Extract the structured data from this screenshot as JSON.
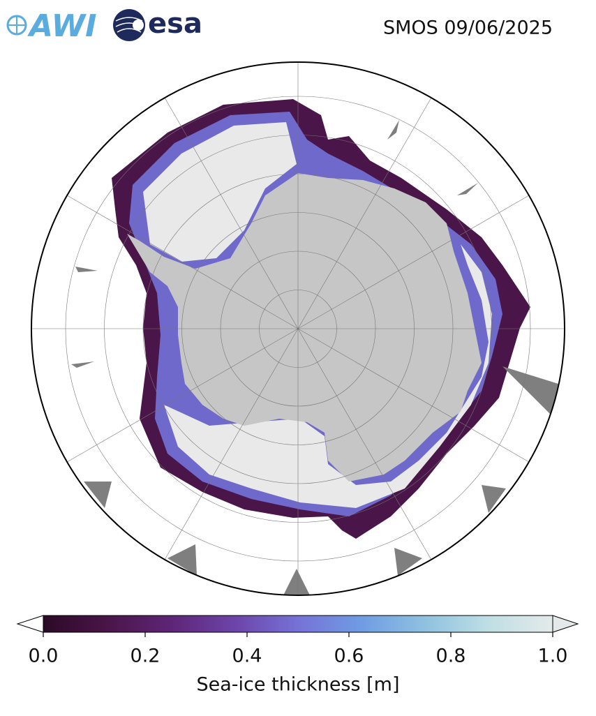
{
  "header": {
    "logos": [
      "AWI",
      "esa"
    ],
    "title": "SMOS 09/06/2025"
  },
  "colorbar": {
    "label": "Sea-ice thickness [m]",
    "lim": [
      0,
      1
    ],
    "ticks": [
      {
        "value": 0,
        "label": "0.0"
      },
      {
        "value": 0.2,
        "label": "0.2"
      },
      {
        "value": 0.4,
        "label": "0.4"
      },
      {
        "value": 0.6,
        "label": "0.6"
      },
      {
        "value": 0.8,
        "label": "0.8"
      },
      {
        "value": 1,
        "label": "1.0"
      }
    ],
    "colormap": [
      "#2b0a26",
      "#4a1548",
      "#5e2577",
      "#6c44a8",
      "#7672d6",
      "#6f9de3",
      "#8fc2e0",
      "#bfdfe4",
      "#e4eaea"
    ]
  }
}
